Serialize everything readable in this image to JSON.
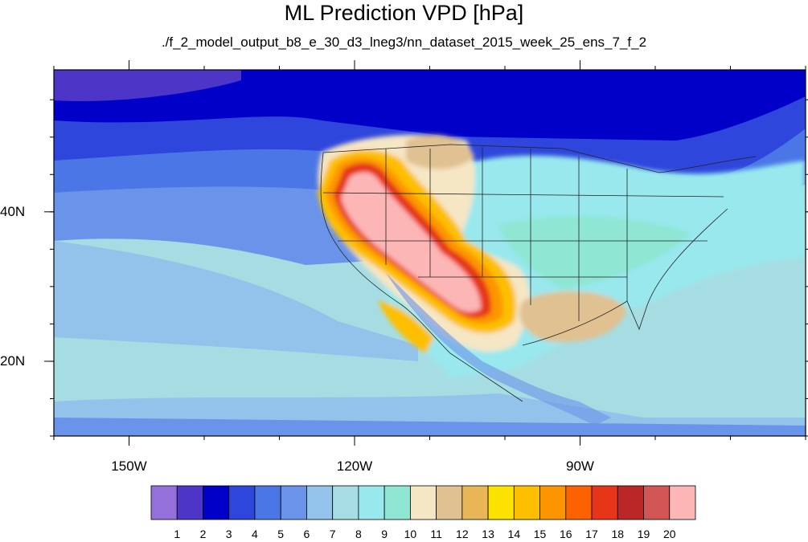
{
  "title": "ML Prediction VPD [hPa]",
  "subtitle": "./f_2_model_output_b8_e_30_d3_lneg3/nn_dataset_2015_week_25_ens_7_f_2",
  "map": {
    "lon_range": [
      -160,
      -60
    ],
    "lat_range": [
      10,
      59
    ],
    "lon_ticks": [
      {
        "value": -150,
        "label": "150W"
      },
      {
        "value": -120,
        "label": "120W"
      },
      {
        "value": -90,
        "label": "90W"
      }
    ],
    "lat_ticks": [
      {
        "value": 40,
        "label": "40N"
      },
      {
        "value": 20,
        "label": "20N"
      }
    ]
  },
  "colorbar": {
    "colors": [
      "#9370db",
      "#4d35c8",
      "#0000c8",
      "#2e46dc",
      "#4b77e6",
      "#6a93ea",
      "#93c2ea",
      "#a6dde3",
      "#98e8ee",
      "#8ee6d3",
      "#f5e6c4",
      "#e0c191",
      "#e8b656",
      "#fde200",
      "#fdbf00",
      "#fd9500",
      "#fd6200",
      "#e63518",
      "#bb2727",
      "#d35656",
      "#fdb6b6"
    ],
    "labels": [
      "1",
      "2",
      "3",
      "4",
      "5",
      "6",
      "7",
      "8",
      "9",
      "10",
      "11",
      "12",
      "13",
      "14",
      "15",
      "16",
      "17",
      "18",
      "19",
      "20"
    ]
  }
}
